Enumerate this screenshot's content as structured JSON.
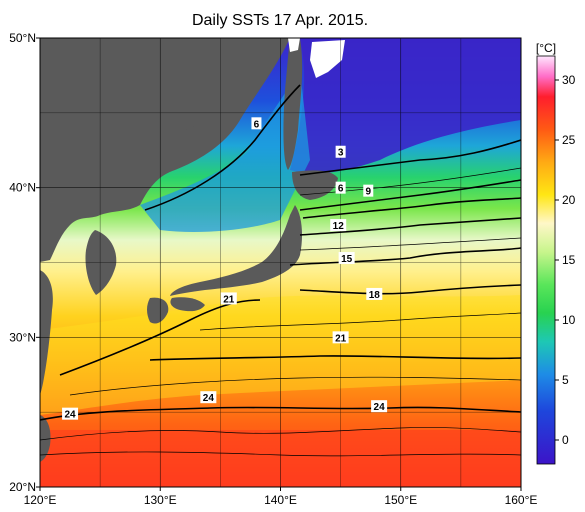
{
  "title": "Daily SSTs 17 Apr. 2015.",
  "colorbar": {
    "unit": "[°C]",
    "ticks": [
      "30",
      "25",
      "20",
      "15",
      "10",
      "5",
      "0"
    ],
    "tick_values": [
      30,
      25,
      20,
      15,
      10,
      5,
      0
    ],
    "range": [
      -2,
      32
    ]
  },
  "map": {
    "land_color": "#5a5a5a",
    "lon_ticks": [
      "120°E",
      "130°E",
      "140°E",
      "150°E",
      "160°E"
    ],
    "lon_values": [
      120,
      130,
      140,
      150,
      160
    ],
    "lat_ticks": [
      "50°N",
      "40°N",
      "30°N",
      "20°N"
    ],
    "lat_values": [
      50,
      40,
      30,
      20
    ],
    "lon_range": [
      120,
      160
    ],
    "lat_range": [
      20,
      50
    ]
  },
  "contour_labels": [
    {
      "text": "6",
      "lon": 138.0,
      "lat": 44.3
    },
    {
      "text": "3",
      "lon": 145.0,
      "lat": 42.4
    },
    {
      "text": "6",
      "lon": 145.0,
      "lat": 40.0
    },
    {
      "text": "9",
      "lon": 147.3,
      "lat": 39.8
    },
    {
      "text": "12",
      "lon": 144.8,
      "lat": 37.5
    },
    {
      "text": "15",
      "lon": 145.5,
      "lat": 35.3
    },
    {
      "text": "18",
      "lon": 147.8,
      "lat": 32.9
    },
    {
      "text": "21",
      "lon": 135.7,
      "lat": 32.6
    },
    {
      "text": "21",
      "lon": 145.0,
      "lat": 30.0
    },
    {
      "text": "24",
      "lon": 134.0,
      "lat": 26.0
    },
    {
      "text": "24",
      "lon": 148.2,
      "lat": 25.4
    },
    {
      "text": "24",
      "lon": 122.5,
      "lat": 24.9
    }
  ]
}
